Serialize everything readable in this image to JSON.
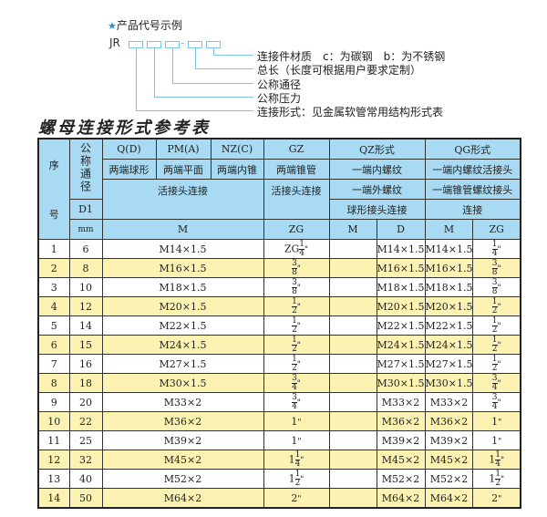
{
  "legend": {
    "title": "产品代号示例",
    "star_icon": "star-icon",
    "prefix": "JR",
    "separator": "-",
    "labels": [
      "连接件材质　c：为碳钢　b：为不锈钢",
      "总长（长度可根据用户要求定制）",
      "公称通径",
      "公称压力",
      "连接形式：见金属软管常用结构形式表"
    ]
  },
  "title": "螺母连接形式参考表",
  "header": {
    "seq": "序号",
    "seq_top": "序",
    "seq_bottom": "号",
    "dn": "公称通径",
    "d1": "D1",
    "mm": "mm",
    "q": "Q(D)",
    "pm": "PM(A)",
    "nz": "NZ(C)",
    "gz": "GZ",
    "qz": "QZ形式",
    "qg": "QG形式",
    "q_desc": "两端球形",
    "pm_desc": "两端平面",
    "nz_desc": "两端内锥",
    "gz_desc": "两端锥管",
    "qz_desc": "一端内螺纹",
    "qg_desc": "一端内螺纹活接头",
    "huo": "活接头连接",
    "gz_conn": "活接头连接",
    "qz_conn": "一端外螺纹",
    "qg_conn": "一端锥管螺纹接头",
    "qz_conn2": "球形接头连接",
    "qg_conn2": "连接",
    "m": "M",
    "zg": "ZG",
    "qz_m": "M",
    "qz_d": "D",
    "qg_m": "M",
    "qg_zg": "ZG"
  },
  "colors": {
    "header": "#a9daf3",
    "stripe": "#fcf3b3",
    "line": "#7cc4ea"
  },
  "rows": [
    {
      "no": "1",
      "dn": "6",
      "m": "M14×1.5",
      "zg": {
        "pre": "ZG",
        "num": "1",
        "den": "4",
        "unit": "\""
      },
      "qz_m": "",
      "qz_d": "M14×1.5",
      "qg_m": "M14×1.5",
      "qg_zg": {
        "pre": "",
        "num": "1",
        "den": "4",
        "unit": "\""
      }
    },
    {
      "no": "2",
      "dn": "8",
      "m": "M16×1.5",
      "zg": {
        "pre": "",
        "num": "3",
        "den": "8",
        "unit": "\""
      },
      "qz_m": "",
      "qz_d": "M16×1.5",
      "qg_m": "M16×1.5",
      "qg_zg": {
        "pre": "",
        "num": "3",
        "den": "8",
        "unit": "\""
      }
    },
    {
      "no": "3",
      "dn": "10",
      "m": "M18×1.5",
      "zg": {
        "pre": "",
        "num": "3",
        "den": "8",
        "unit": "\""
      },
      "qz_m": "",
      "qz_d": "M18×1.5",
      "qg_m": "M18×1.5",
      "qg_zg": {
        "pre": "",
        "num": "3",
        "den": "8",
        "unit": "\""
      }
    },
    {
      "no": "4",
      "dn": "12",
      "m": "M20×1.5",
      "zg": {
        "pre": "",
        "num": "1",
        "den": "2",
        "unit": "\""
      },
      "qz_m": "",
      "qz_d": "M20×1.5",
      "qg_m": "M20×1.5",
      "qg_zg": {
        "pre": "",
        "num": "1",
        "den": "2",
        "unit": "\""
      }
    },
    {
      "no": "5",
      "dn": "14",
      "m": "M22×1.5",
      "zg": {
        "pre": "",
        "num": "1",
        "den": "2",
        "unit": "\""
      },
      "qz_m": "",
      "qz_d": "M22×1.5",
      "qg_m": "M22×1.5",
      "qg_zg": {
        "pre": "",
        "num": "1",
        "den": "2",
        "unit": "\""
      }
    },
    {
      "no": "6",
      "dn": "15",
      "m": "M24×1.5",
      "zg": {
        "pre": "",
        "num": "1",
        "den": "2",
        "unit": "\""
      },
      "qz_m": "",
      "qz_d": "M24×1.5",
      "qg_m": "M24×1.5",
      "qg_zg": {
        "pre": "",
        "num": "1",
        "den": "2",
        "unit": "\""
      }
    },
    {
      "no": "7",
      "dn": "16",
      "m": "M27×1.5",
      "zg": {
        "pre": "",
        "num": "1",
        "den": "2",
        "unit": "\""
      },
      "qz_m": "",
      "qz_d": "M27×1.5",
      "qg_m": "M27×1.5",
      "qg_zg": {
        "pre": "",
        "num": "1",
        "den": "2",
        "unit": "\""
      }
    },
    {
      "no": "8",
      "dn": "18",
      "m": "M30×1.5",
      "zg": {
        "pre": "",
        "num": "3",
        "den": "4",
        "unit": "\""
      },
      "qz_m": "",
      "qz_d": "M30×1.5",
      "qg_m": "M30×1.5",
      "qg_zg": {
        "pre": "",
        "num": "3",
        "den": "4",
        "unit": "\""
      }
    },
    {
      "no": "9",
      "dn": "20",
      "m": "M33×2",
      "zg": {
        "pre": "",
        "num": "3",
        "den": "4",
        "unit": "\""
      },
      "qz_m": "",
      "qz_d": "M33×2",
      "qg_m": "M33×2",
      "qg_zg": {
        "pre": "",
        "num": "3",
        "den": "4",
        "unit": "\""
      }
    },
    {
      "no": "10",
      "dn": "22",
      "m": "M36×2",
      "zg": {
        "pre": "1",
        "num": "",
        "den": "",
        "unit": "\""
      },
      "qz_m": "",
      "qz_d": "M36×2",
      "qg_m": "M36×2",
      "qg_zg": {
        "pre": "1",
        "num": "",
        "den": "",
        "unit": "\""
      }
    },
    {
      "no": "11",
      "dn": "25",
      "m": "M39×2",
      "zg": {
        "pre": "1",
        "num": "",
        "den": "",
        "unit": "\""
      },
      "qz_m": "",
      "qz_d": "M39×2",
      "qg_m": "M39×2",
      "qg_zg": {
        "pre": "1",
        "num": "",
        "den": "",
        "unit": "\""
      }
    },
    {
      "no": "12",
      "dn": "32",
      "m": "M45×2",
      "zg": {
        "pre": "1",
        "num": "1",
        "den": "4",
        "unit": "\""
      },
      "qz_m": "",
      "qz_d": "M45×2",
      "qg_m": "M45×2",
      "qg_zg": {
        "pre": "1",
        "num": "1",
        "den": "4",
        "unit": "\""
      }
    },
    {
      "no": "13",
      "dn": "40",
      "m": "M52×2",
      "zg": {
        "pre": "1",
        "num": "1",
        "den": "2",
        "unit": "\""
      },
      "qz_m": "",
      "qz_d": "M52×2",
      "qg_m": "M52×2",
      "qg_zg": {
        "pre": "1",
        "num": "1",
        "den": "2",
        "unit": "\""
      }
    },
    {
      "no": "14",
      "dn": "50",
      "m": "M64×2",
      "zg": {
        "pre": "2",
        "num": "",
        "den": "",
        "unit": "\""
      },
      "qz_m": "",
      "qz_d": "M64×2",
      "qg_m": "M64×2",
      "qg_zg": {
        "pre": "2",
        "num": "",
        "den": "",
        "unit": "\""
      }
    }
  ]
}
